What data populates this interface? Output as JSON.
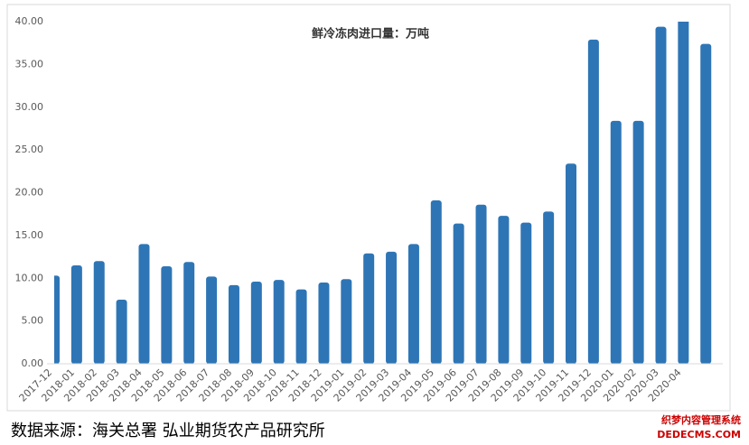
{
  "chart_data": {
    "type": "bar",
    "title": "鲜冷冻肉进口量：万吨",
    "categories": [
      "2017-12",
      "2018-01",
      "2018-02",
      "2018-03",
      "2018-04",
      "2018-05",
      "2018-06",
      "2018-07",
      "2018-08",
      "2018-09",
      "2018-10",
      "2018-11",
      "2018-12",
      "2019-01",
      "2019-02",
      "2019-03",
      "2019-04",
      "2019-05",
      "2019-06",
      "2019-07",
      "2019-08",
      "2019-09",
      "2019-10",
      "2019-11",
      "2019-12",
      "2020-01",
      "2020-02",
      "2020-03",
      "2020-04",
      null
    ],
    "values": [
      10.3,
      11.5,
      12.0,
      7.5,
      14.0,
      11.4,
      11.9,
      10.2,
      9.2,
      9.6,
      9.8,
      8.7,
      9.5,
      9.9,
      12.9,
      13.1,
      14.0,
      19.1,
      16.4,
      18.6,
      17.3,
      16.5,
      17.8,
      23.4,
      37.9,
      28.4,
      28.4,
      39.4,
      40.3,
      37.4
    ],
    "color": "#2e75b6",
    "ylim": [
      0,
      40
    ],
    "yticks": [
      {
        "value": 0,
        "label": "0.00"
      },
      {
        "value": 5,
        "label": "5.00"
      },
      {
        "value": 10,
        "label": "10.00"
      },
      {
        "value": 15,
        "label": "15.00"
      },
      {
        "value": 20,
        "label": "20.00"
      },
      {
        "value": 25,
        "label": "25.00"
      },
      {
        "value": 30,
        "label": "30.00"
      },
      {
        "value": 35,
        "label": "35.00"
      },
      {
        "value": 40,
        "label": "40.00"
      }
    ],
    "grid": false
  },
  "source": "数据来源：海关总署 弘业期货农产品研究所",
  "watermark": [
    "织梦内容管理系统",
    "DEDECMS.COM"
  ]
}
